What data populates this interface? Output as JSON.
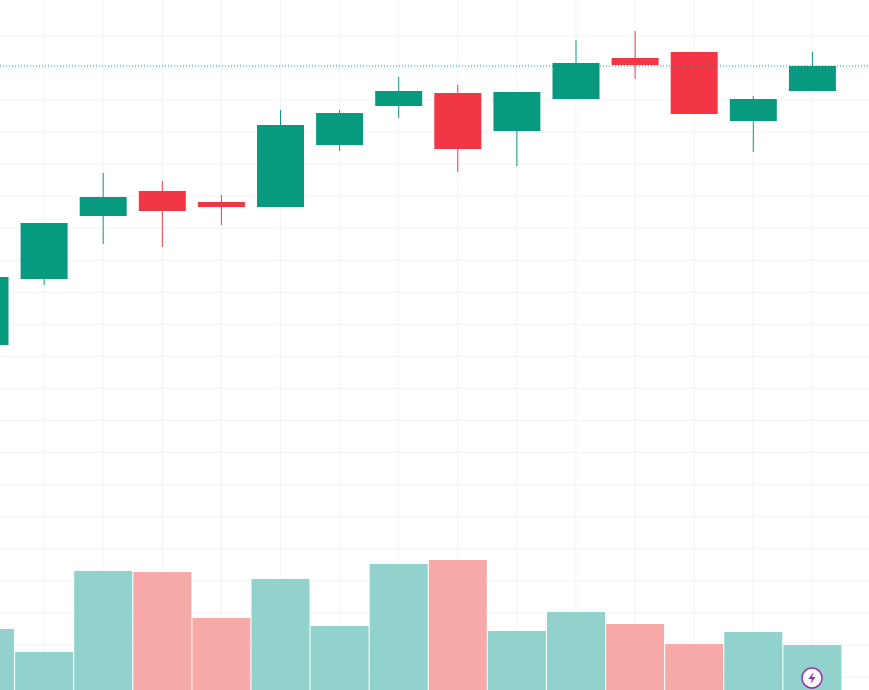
{
  "chart_data": {
    "type": "candlestick",
    "categories": [
      null,
      null,
      null,
      null,
      null,
      null,
      null,
      null,
      null,
      null,
      null,
      null,
      null,
      null,
      null
    ],
    "open": [
      345,
      411,
      474,
      499,
      488,
      483,
      545,
      584,
      597,
      559,
      591,
      632,
      638,
      569,
      599
    ],
    "high": [
      413,
      467,
      517,
      509,
      495,
      580,
      580,
      613,
      605,
      598,
      650,
      659,
      638,
      594,
      638
    ],
    "low": [
      345,
      405,
      446,
      443,
      465,
      483,
      539,
      572,
      518,
      524,
      591,
      611,
      576,
      538,
      599
    ],
    "close": [
      413,
      467,
      493,
      479,
      483,
      565,
      577,
      599,
      541,
      598,
      627,
      625,
      576,
      591,
      624
    ],
    "volume": [
      61,
      38,
      119,
      118,
      72,
      111,
      64,
      126,
      130,
      59,
      78,
      66,
      46,
      58,
      45
    ],
    "ylim": [
      0,
      690
    ],
    "volume_lim": [
      0,
      690
    ],
    "up_color": "#089981",
    "down_color": "#f23645",
    "volume_up_color": "#92d2cc",
    "volume_down_color": "#f7a9a7",
    "grid": true,
    "last_price_line": true
  }
}
